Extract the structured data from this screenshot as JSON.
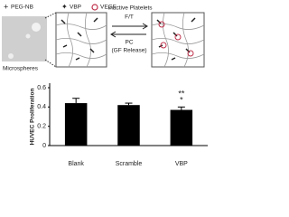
{
  "legend": [
    "PEG-NB",
    "VBP",
    "VEGF"
  ],
  "diagram": {
    "image_label": "Microspheres",
    "top_label": "Inactive Platelets",
    "forward_label": "F/T",
    "reverse_label": "PC",
    "reverse_sublabel": "(GF Release)"
  },
  "chart_data": {
    "type": "bar",
    "ylabel": "HUVEC Proliferation",
    "categories": [
      "Blank",
      "Scramble",
      "VBP"
    ],
    "values": [
      0.44,
      0.42,
      0.37
    ],
    "errors": [
      0.05,
      0.02,
      0.03
    ],
    "color": "#000000",
    "ylim": [
      0,
      0.6
    ],
    "yticks": [
      0,
      0.2,
      0.4,
      0.6
    ],
    "annotations": [
      "**",
      "*"
    ]
  }
}
